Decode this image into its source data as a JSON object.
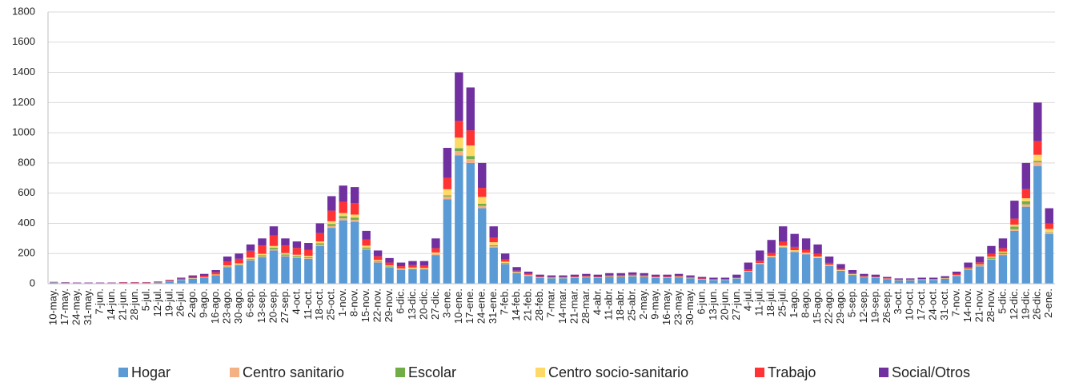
{
  "chart_data": {
    "type": "stacked-bar",
    "categories": [
      "10-may.",
      "17-may.",
      "24-may.",
      "31-may.",
      "7-jun.",
      "14-jun.",
      "21-jun.",
      "28-jun.",
      "5-jul.",
      "12-jul.",
      "19-jul.",
      "26-jul.",
      "2-ago.",
      "9-ago.",
      "16-ago.",
      "23-ago.",
      "30-ago.",
      "6-sep.",
      "13-sep.",
      "20-sep.",
      "27-sep.",
      "4-oct.",
      "11-oct.",
      "18-oct.",
      "25-oct.",
      "1-nov.",
      "8-nov.",
      "15-nov.",
      "22-nov.",
      "29-nov.",
      "6-dic.",
      "13-dic.",
      "20-dic.",
      "27-dic.",
      "3-ene.",
      "10-ene.",
      "17-ene.",
      "24-ene.",
      "31-ene.",
      "7-feb.",
      "14-feb.",
      "21-feb.",
      "28-feb.",
      "7-mar.",
      "14-mar.",
      "21-mar.",
      "28-mar.",
      "4-abr.",
      "11-abr.",
      "18-abr.",
      "25-abr.",
      "2-may.",
      "9-may.",
      "16-may.",
      "23-may.",
      "30-may.",
      "6-jun.",
      "13-jun.",
      "20-jun.",
      "27-jun.",
      "4-jul.",
      "11-jul.",
      "18-jul.",
      "25-jul.",
      "1-ago.",
      "8-ago.",
      "15-ago.",
      "22-ago.",
      "29-ago.",
      "5-sep.",
      "12-sep.",
      "19-sep.",
      "26-sep.",
      "3-oct.",
      "10-oct.",
      "17-oct.",
      "24-oct.",
      "31-oct.",
      "7-nov.",
      "14-nov.",
      "21-nov.",
      "28-nov.",
      "5-dic.",
      "12-dic.",
      "19-dic.",
      "26-dic.",
      "2-ene."
    ],
    "series": [
      {
        "name": "Hogar",
        "color": "#5b9bd5",
        "values": [
          8,
          7,
          5,
          5,
          5,
          5,
          6,
          6,
          6,
          9,
          15,
          25,
          34,
          40,
          56,
          110,
          122,
          155,
          175,
          220,
          180,
          170,
          165,
          250,
          370,
          420,
          410,
          225,
          140,
          108,
          90,
          96,
          95,
          190,
          560,
          850,
          800,
          500,
          240,
          130,
          70,
          52,
          38,
          35,
          35,
          38,
          42,
          38,
          45,
          45,
          48,
          45,
          38,
          38,
          42,
          35,
          28,
          25,
          25,
          35,
          80,
          130,
          175,
          240,
          210,
          195,
          170,
          118,
          85,
          58,
          42,
          38,
          29,
          22,
          22,
          25,
          25,
          32,
          52,
          90,
          115,
          160,
          190,
          350,
          510,
          780,
          330
        ]
      },
      {
        "name": "Centro sanitario",
        "color": "#f4b183",
        "values": [
          0,
          0,
          0,
          0,
          0,
          0,
          0,
          0,
          0,
          0,
          1,
          1,
          1,
          1,
          2,
          4,
          4,
          5,
          6,
          8,
          6,
          6,
          5,
          8,
          12,
          13,
          13,
          7,
          4,
          3,
          3,
          3,
          3,
          6,
          18,
          28,
          26,
          16,
          8,
          4,
          2,
          2,
          1,
          1,
          1,
          1,
          1,
          1,
          1,
          1,
          2,
          1,
          1,
          1,
          1,
          1,
          1,
          1,
          1,
          1,
          2,
          3,
          4,
          5,
          5,
          4,
          4,
          3,
          2,
          2,
          1,
          1,
          1,
          1,
          1,
          1,
          1,
          1,
          1,
          3,
          3,
          5,
          6,
          11,
          16,
          24,
          10
        ]
      },
      {
        "name": "Escolar",
        "color": "#70ad47",
        "values": [
          0,
          0,
          0,
          0,
          0,
          0,
          0,
          0,
          0,
          0,
          0,
          0,
          0,
          0,
          0,
          2,
          3,
          5,
          8,
          10,
          8,
          7,
          7,
          10,
          14,
          15,
          15,
          8,
          5,
          4,
          3,
          3,
          1,
          1,
          8,
          20,
          20,
          14,
          7,
          4,
          2,
          2,
          2,
          2,
          2,
          2,
          1,
          1,
          2,
          2,
          2,
          2,
          2,
          2,
          2,
          1,
          1,
          0,
          0,
          0,
          0,
          0,
          0,
          0,
          0,
          0,
          0,
          0,
          1,
          2,
          2,
          2,
          2,
          1,
          1,
          1,
          1,
          2,
          3,
          5,
          6,
          8,
          10,
          18,
          20,
          10,
          3
        ]
      },
      {
        "name": "Centro socio-sanitario",
        "color": "#ffd966",
        "values": [
          1,
          0,
          0,
          0,
          0,
          0,
          0,
          0,
          0,
          0,
          1,
          1,
          2,
          2,
          3,
          5,
          6,
          8,
          9,
          12,
          9,
          9,
          8,
          12,
          18,
          20,
          20,
          12,
          8,
          6,
          5,
          5,
          5,
          10,
          40,
          70,
          70,
          45,
          20,
          8,
          4,
          3,
          2,
          2,
          2,
          2,
          2,
          2,
          2,
          2,
          2,
          2,
          2,
          2,
          2,
          2,
          1,
          1,
          1,
          1,
          2,
          4,
          5,
          7,
          7,
          6,
          6,
          4,
          3,
          2,
          1,
          1,
          1,
          1,
          1,
          1,
          1,
          1,
          2,
          3,
          4,
          6,
          7,
          12,
          20,
          40,
          20
        ]
      },
      {
        "name": "Trabajo",
        "color": "#ff3333",
        "values": [
          1,
          1,
          1,
          1,
          1,
          1,
          2,
          2,
          2,
          3,
          4,
          6,
          8,
          10,
          14,
          27,
          30,
          45,
          55,
          70,
          50,
          45,
          40,
          55,
          70,
          75,
          75,
          40,
          25,
          19,
          15,
          16,
          16,
          28,
          74,
          110,
          100,
          60,
          30,
          15,
          8,
          6,
          5,
          4,
          4,
          5,
          5,
          5,
          6,
          6,
          6,
          6,
          5,
          5,
          5,
          4,
          4,
          3,
          3,
          5,
          10,
          15,
          20,
          25,
          22,
          20,
          18,
          13,
          9,
          6,
          5,
          4,
          3,
          3,
          3,
          3,
          3,
          4,
          6,
          10,
          13,
          18,
          22,
          40,
          60,
          90,
          35
        ]
      },
      {
        "name": "Social/Otros",
        "color": "#7030a0",
        "values": [
          2,
          2,
          2,
          2,
          2,
          2,
          2,
          2,
          2,
          3,
          4,
          7,
          10,
          12,
          15,
          32,
          35,
          42,
          47,
          60,
          47,
          43,
          45,
          65,
          96,
          107,
          107,
          58,
          38,
          30,
          24,
          27,
          30,
          65,
          200,
          322,
          284,
          165,
          75,
          39,
          24,
          15,
          12,
          11,
          11,
          12,
          14,
          13,
          14,
          14,
          15,
          14,
          12,
          12,
          13,
          12,
          10,
          10,
          10,
          18,
          46,
          68,
          86,
          103,
          86,
          75,
          62,
          42,
          30,
          20,
          14,
          14,
          9,
          7,
          7,
          9,
          9,
          10,
          16,
          29,
          39,
          53,
          65,
          119,
          174,
          256,
          102
        ]
      }
    ],
    "ylim": [
      0,
      1800
    ],
    "yticks": [
      0,
      200,
      400,
      600,
      800,
      1000,
      1200,
      1400,
      1600,
      1800
    ],
    "grid": true
  }
}
